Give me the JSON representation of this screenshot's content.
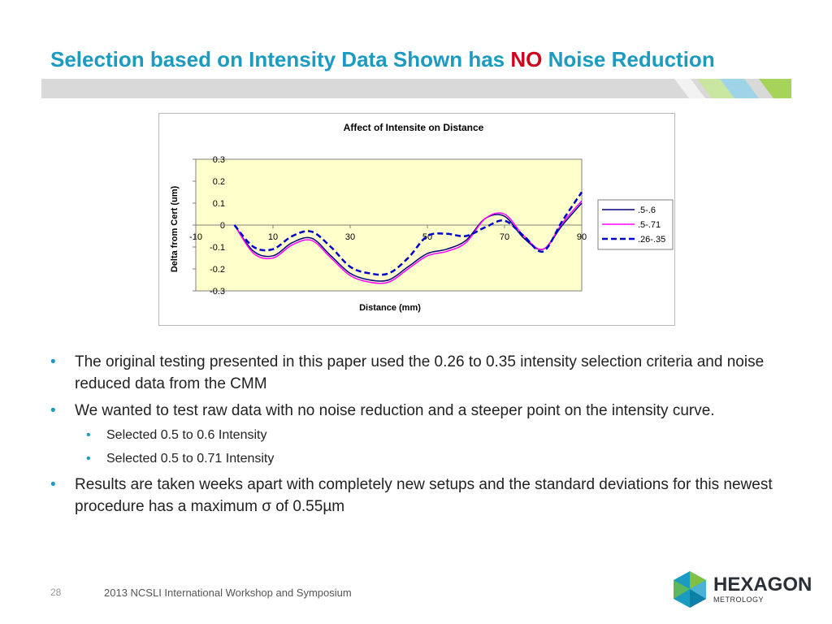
{
  "slide": {
    "title_before": "Selection based on Intensity Data Shown has ",
    "title_emph": "NO",
    "title_after": " Noise Reduction",
    "bullets": [
      "The original testing presented in this paper used the 0.26 to 0.35 intensity selection criteria and noise reduced data from the CMM",
      "We wanted to test raw data with no noise reduction and a steeper point on the intensity curve.",
      "Selected 0.5 to 0.6 Intensity",
      "Selected 0.5 to 0.71 Intensity",
      "Results are taken weeks apart with completely new setups and the standard deviations for this newest procedure has a maximum σ of 0.55µm"
    ],
    "bullet_glyph": "•",
    "footer": {
      "page_number": "28",
      "text": "2013 NCSLI International Workshop and Symposium"
    },
    "logo": {
      "word": "HEXAGON",
      "sub": "METROLOGY"
    }
  },
  "chart_data": {
    "type": "line",
    "title": "Affect of Intensite on Distance",
    "xlabel": "Distance (mm)",
    "ylabel": "Delta from Cert (um)",
    "xlim": [
      -10,
      90
    ],
    "ylim": [
      -0.3,
      0.3
    ],
    "x_ticks": [
      -10,
      10,
      30,
      50,
      70,
      90
    ],
    "y_ticks": [
      0.3,
      0.2,
      0.1,
      0,
      -0.1,
      -0.2,
      -0.3
    ],
    "plot_background": "#ffffcc",
    "legend_position": "right",
    "series": [
      {
        "name": ".5-.6",
        "color": "#000080",
        "dash": "solid",
        "x": [
          0,
          5,
          10,
          15,
          20,
          25,
          30,
          35,
          40,
          45,
          50,
          55,
          60,
          65,
          70,
          75,
          80,
          85,
          90
        ],
        "y": [
          0,
          -0.12,
          -0.14,
          -0.08,
          -0.06,
          -0.14,
          -0.22,
          -0.25,
          -0.25,
          -0.19,
          -0.13,
          -0.11,
          -0.07,
          0.03,
          0.04,
          -0.06,
          -0.11,
          0.0,
          0.1
        ]
      },
      {
        "name": ".5-.71",
        "color": "#ff00ff",
        "dash": "solid",
        "x": [
          0,
          5,
          10,
          15,
          20,
          25,
          30,
          35,
          40,
          45,
          50,
          55,
          60,
          65,
          70,
          75,
          80,
          85,
          90
        ],
        "y": [
          0,
          -0.13,
          -0.15,
          -0.09,
          -0.07,
          -0.15,
          -0.23,
          -0.26,
          -0.26,
          -0.2,
          -0.14,
          -0.12,
          -0.08,
          0.03,
          0.05,
          -0.05,
          -0.11,
          0.01,
          0.11
        ]
      },
      {
        "name": ".26-.35",
        "color": "#0000cc",
        "dash": "dashed",
        "x": [
          0,
          5,
          10,
          15,
          20,
          25,
          30,
          35,
          40,
          45,
          50,
          55,
          60,
          65,
          70,
          75,
          80,
          85,
          90
        ],
        "y": [
          0,
          -0.1,
          -0.11,
          -0.05,
          -0.03,
          -0.1,
          -0.19,
          -0.22,
          -0.22,
          -0.15,
          -0.05,
          -0.04,
          -0.05,
          -0.01,
          0.02,
          -0.05,
          -0.12,
          0.02,
          0.15
        ]
      }
    ]
  }
}
